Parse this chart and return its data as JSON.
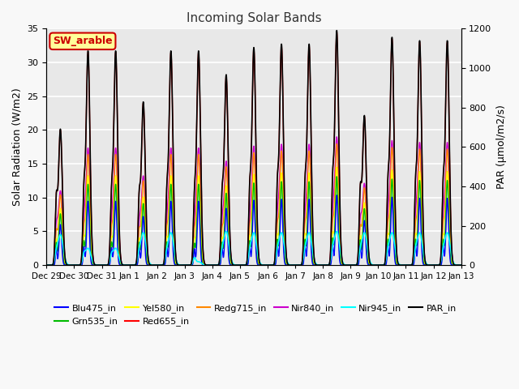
{
  "title": "Incoming Solar Bands",
  "ylabel_left": "Solar Radiation (W/m2)",
  "ylabel_right": "PAR (μmol/m2/s)",
  "ylim_left": [
    0,
    35
  ],
  "ylim_right": [
    0,
    1200
  ],
  "series_colors": {
    "Blu475_in": "#0000ff",
    "Grn535_in": "#00bb00",
    "Yel580_in": "#ffff00",
    "Red655_in": "#ff0000",
    "Redg715_in": "#ff8800",
    "Nir840_in": "#cc00cc",
    "Nir945_in": "#00ffff",
    "PAR_in": "#000000"
  },
  "xtick_labels": [
    "Dec 29",
    "Dec 30",
    "Dec 31",
    "Jan 1",
    "Jan 2",
    "Jan 3",
    "Jan 4",
    "Jan 5",
    "Jan 6",
    "Jan 7",
    "Jan 8",
    "Jan 9",
    "Jan 10",
    "Jan 11",
    "Jan 12",
    "Jan 13"
  ],
  "xtick_positions": [
    0,
    1,
    2,
    3,
    4,
    5,
    6,
    7,
    8,
    9,
    10,
    11,
    12,
    13,
    14,
    15
  ],
  "annotation_text": "SW_arable",
  "annotation_color": "#cc0000",
  "annotation_bg": "#ffff99",
  "annotation_border": "#cc0000",
  "fig_bg": "#f8f8f8",
  "plot_bg": "#e8e8e8",
  "grid_color": "#ffffff",
  "peaks": [
    0.5,
    1.5,
    2.5,
    3.5,
    4.5,
    5.5,
    6.5,
    7.5,
    8.5,
    9.5,
    10.5,
    11.5,
    12.5,
    13.5,
    14.5
  ],
  "peak_heights": [
    20.0,
    31.5,
    31.5,
    24.0,
    31.5,
    31.5,
    28.0,
    32.0,
    32.5,
    32.5,
    34.5,
    22.0,
    33.5,
    33.0,
    33.0
  ],
  "red_fracs": [
    1.0,
    1.0,
    1.0,
    1.0,
    1.0,
    1.0,
    1.0,
    1.0,
    1.0,
    1.0,
    1.0,
    1.0,
    1.0,
    1.0,
    1.0
  ],
  "sec_peaks": [
    0.35,
    1.35,
    2.35,
    3.35,
    4.35,
    5.35,
    6.35,
    7.35,
    8.35,
    9.35,
    10.35,
    11.35,
    12.35,
    13.35,
    14.35
  ],
  "sec_heights": [
    8.5,
    9.0,
    8.5,
    8.5,
    8.5,
    8.0,
    8.5,
    9.0,
    9.5,
    9.5,
    10.0,
    9.5,
    9.5,
    9.5,
    9.5
  ],
  "nir945_heights": [
    4.5,
    2.5,
    2.5,
    4.8,
    4.8,
    0.5,
    5.0,
    4.8,
    4.8,
    4.8,
    5.0,
    4.8,
    4.8,
    4.8,
    4.8
  ],
  "par_scale": 34.5,
  "peak_sigma": 0.07,
  "sec_sigma": 0.04,
  "nir945_sigma": 0.1
}
